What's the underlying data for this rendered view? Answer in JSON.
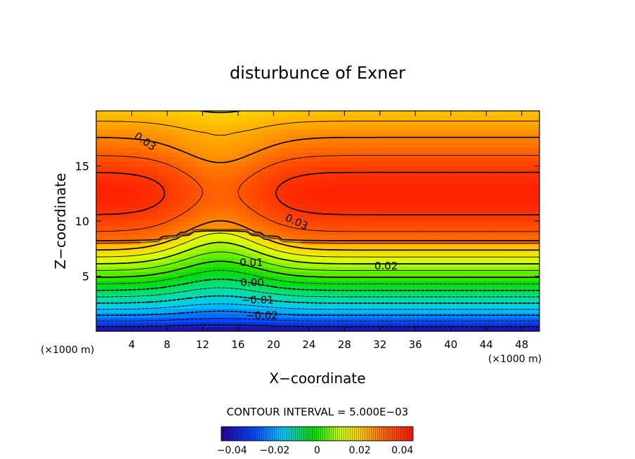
{
  "chart_data": {
    "type": "heatmap",
    "title": "disturbunce of Exner",
    "xlabel": "X−coordinate",
    "ylabel": "Z−coordinate",
    "x_unit": "(×1000 m)",
    "y_unit": "(×1000 m)",
    "xlim": [
      0,
      50
    ],
    "ylim": [
      0,
      20
    ],
    "x_ticks": [
      4,
      8,
      12,
      16,
      20,
      24,
      28,
      32,
      36,
      40,
      44,
      48
    ],
    "x_tick_labels": [
      "4",
      "8",
      "12",
      "16",
      "20",
      "24",
      "28",
      "32",
      "36",
      "40",
      "44",
      "48"
    ],
    "y_ticks": [
      5,
      10,
      15
    ],
    "y_tick_labels": [
      "5",
      "10",
      "15"
    ],
    "contour_interval": 0.005,
    "contour_interval_text": "CONTOUR INTERVAL = 5.000E−03",
    "value_range": [
      -0.045,
      0.045
    ],
    "contour_labels": [
      {
        "text": "0.03",
        "x": 5.5,
        "z": 17.2
      },
      {
        "text": "0.03",
        "x": 22.6,
        "z": 9.9
      },
      {
        "text": "0.01",
        "x": 17.5,
        "z": 6.2
      },
      {
        "text": "0.02",
        "x": 32.7,
        "z": 5.9
      },
      {
        "text": "0.00",
        "x": 17.6,
        "z": 4.4
      },
      {
        "text": "−0.01",
        "x": 18.2,
        "z": 2.8
      },
      {
        "text": "−0.02",
        "x": 18.7,
        "z": 1.4
      }
    ],
    "colorbar": {
      "ticks": [
        -0.04,
        -0.02,
        0,
        0.02,
        0.04
      ],
      "tick_labels": [
        "−0.04",
        "−0.02",
        "0",
        "0.02",
        "0.04"
      ]
    },
    "colors": {
      "min": "#2a00a0",
      "low": "#00c8ff",
      "mid": "#00e000",
      "upper": "#ffe000",
      "high": "#ff6000",
      "max": "#ff1a00"
    }
  }
}
